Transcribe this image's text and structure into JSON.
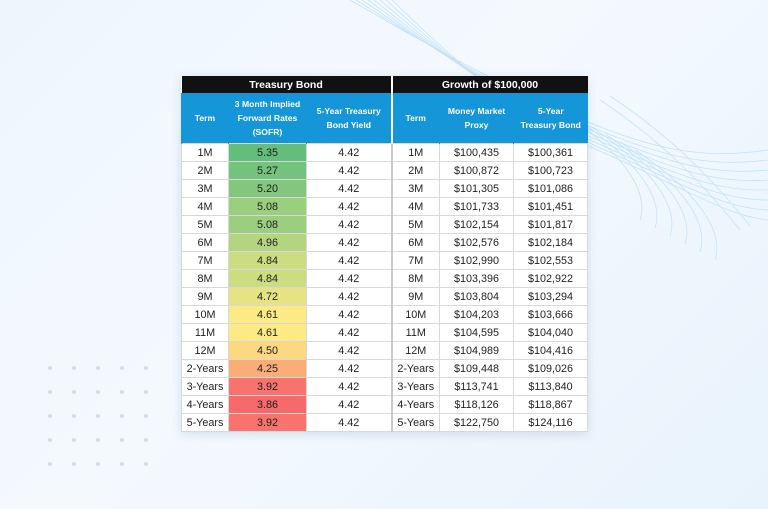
{
  "headers": {
    "group_left": "Treasury Bond",
    "group_right": "Growth of $100,000",
    "columns": [
      [
        "Term"
      ],
      [
        "3 Month Implied",
        "Forward Rates",
        "(SOFR)"
      ],
      [
        "5-Year Treasury",
        "Bond Yield"
      ],
      [
        "Term"
      ],
      [
        "Money Market",
        "Proxy"
      ],
      [
        "5-Year",
        "Treasury Bond"
      ]
    ]
  },
  "rows": [
    {
      "term": "1M",
      "sofr": "5.35",
      "yield": "4.42",
      "term2": "1M",
      "mm": "$100,435",
      "tb": "$100,361"
    },
    {
      "term": "2M",
      "sofr": "5.27",
      "yield": "4.42",
      "term2": "2M",
      "mm": "$100,872",
      "tb": "$100,723"
    },
    {
      "term": "3M",
      "sofr": "5.20",
      "yield": "4.42",
      "term2": "3M",
      "mm": "$101,305",
      "tb": "$101,086"
    },
    {
      "term": "4M",
      "sofr": "5.08",
      "yield": "4.42",
      "term2": "4M",
      "mm": "$101,733",
      "tb": "$101,451"
    },
    {
      "term": "5M",
      "sofr": "5.08",
      "yield": "4.42",
      "term2": "5M",
      "mm": "$102,154",
      "tb": "$101,817"
    },
    {
      "term": "6M",
      "sofr": "4.96",
      "yield": "4.42",
      "term2": "6M",
      "mm": "$102,576",
      "tb": "$102,184"
    },
    {
      "term": "7M",
      "sofr": "4.84",
      "yield": "4.42",
      "term2": "7M",
      "mm": "$102,990",
      "tb": "$102,553"
    },
    {
      "term": "8M",
      "sofr": "4.84",
      "yield": "4.42",
      "term2": "8M",
      "mm": "$103,396",
      "tb": "$102,922"
    },
    {
      "term": "9M",
      "sofr": "4.72",
      "yield": "4.42",
      "term2": "9M",
      "mm": "$103,804",
      "tb": "$103,294"
    },
    {
      "term": "10M",
      "sofr": "4.61",
      "yield": "4.42",
      "term2": "10M",
      "mm": "$104,203",
      "tb": "$103,666"
    },
    {
      "term": "11M",
      "sofr": "4.61",
      "yield": "4.42",
      "term2": "11M",
      "mm": "$104,595",
      "tb": "$104,040"
    },
    {
      "term": "12M",
      "sofr": "4.50",
      "yield": "4.42",
      "term2": "12M",
      "mm": "$104,989",
      "tb": "$104,416"
    },
    {
      "term": "2-Years",
      "sofr": "4.25",
      "yield": "4.42",
      "term2": "2-Years",
      "mm": "$109,448",
      "tb": "$109,026"
    },
    {
      "term": "3-Years",
      "sofr": "3.92",
      "yield": "4.42",
      "term2": "3-Years",
      "mm": "$113,741",
      "tb": "$113,840"
    },
    {
      "term": "4-Years",
      "sofr": "3.86",
      "yield": "4.42",
      "term2": "4-Years",
      "mm": "$118,126",
      "tb": "$118,867"
    },
    {
      "term": "5-Years",
      "sofr": "3.92",
      "yield": "4.42",
      "term2": "5-Years",
      "mm": "$122,750",
      "tb": "$124,116"
    }
  ],
  "colors": {
    "header_black": "#111111",
    "header_blue": "#1596d8",
    "heat_high": "#63be7b",
    "heat_mid": "#fdea84",
    "heat_low": "#f8696b"
  }
}
